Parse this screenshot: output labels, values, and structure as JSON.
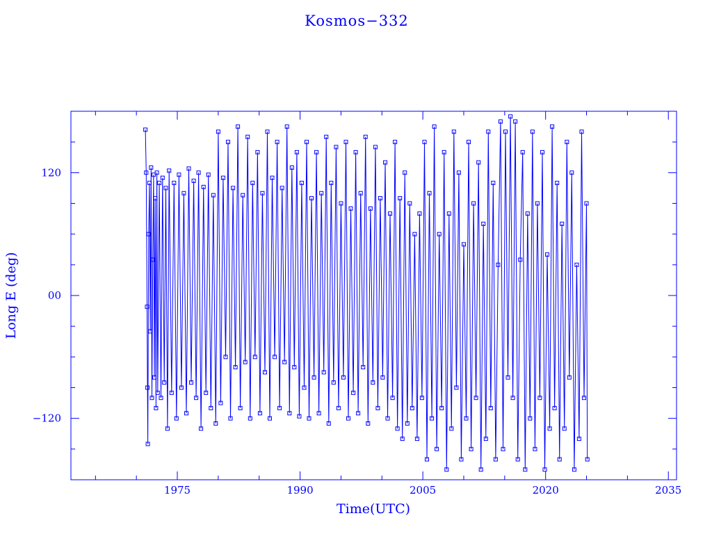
{
  "chart_data": {
    "type": "scatter",
    "title": "Kosmos−332",
    "xlabel": "Time(UTC)",
    "ylabel": "Long E (deg)",
    "xlim": [
      1962,
      2036
    ],
    "ylim": [
      -180,
      180
    ],
    "x_ticks": [
      1975,
      1990,
      2005,
      2020,
      2035
    ],
    "x_tick_labels": [
      "1975",
      "1990",
      "2005",
      "2020",
      "2035"
    ],
    "y_ticks": [
      120,
      0,
      -120
    ],
    "y_tick_labels": [
      "120",
      "00",
      "−120"
    ],
    "color": "#0000ff",
    "marker": "square",
    "connected": true,
    "grid": false,
    "x_range_of_data": [
      1971.0,
      2025.1
    ],
    "series": [
      {
        "name": "",
        "points": [
          [
            1971.1,
            162
          ],
          [
            1971.2,
            120
          ],
          [
            1971.3,
            -11
          ],
          [
            1971.35,
            -90
          ],
          [
            1971.4,
            -145
          ],
          [
            1971.5,
            60
          ],
          [
            1971.6,
            110
          ],
          [
            1971.7,
            -35
          ],
          [
            1971.8,
            125
          ],
          [
            1971.9,
            -100
          ],
          [
            1972.0,
            35
          ],
          [
            1972.1,
            118
          ],
          [
            1972.2,
            -80
          ],
          [
            1972.3,
            95
          ],
          [
            1972.4,
            -110
          ],
          [
            1972.5,
            120
          ],
          [
            1972.6,
            -95
          ],
          [
            1972.8,
            110
          ],
          [
            1973.0,
            -100
          ],
          [
            1973.2,
            115
          ],
          [
            1973.4,
            -85
          ],
          [
            1973.6,
            105
          ],
          [
            1973.8,
            -130
          ],
          [
            1974.0,
            122
          ],
          [
            1974.3,
            -95
          ],
          [
            1974.6,
            110
          ],
          [
            1974.9,
            -120
          ],
          [
            1975.2,
            118
          ],
          [
            1975.5,
            -90
          ],
          [
            1975.8,
            100
          ],
          [
            1976.1,
            -115
          ],
          [
            1976.4,
            124
          ],
          [
            1976.7,
            -85
          ],
          [
            1977.0,
            112
          ],
          [
            1977.3,
            -100
          ],
          [
            1977.6,
            120
          ],
          [
            1977.9,
            -130
          ],
          [
            1978.2,
            106
          ],
          [
            1978.5,
            -95
          ],
          [
            1978.8,
            118
          ],
          [
            1979.1,
            -110
          ],
          [
            1979.4,
            98
          ],
          [
            1979.7,
            -125
          ],
          [
            1980.0,
            160
          ],
          [
            1980.3,
            -105
          ],
          [
            1980.6,
            115
          ],
          [
            1980.9,
            -60
          ],
          [
            1981.2,
            150
          ],
          [
            1981.5,
            -120
          ],
          [
            1981.8,
            105
          ],
          [
            1982.1,
            -70
          ],
          [
            1982.4,
            165
          ],
          [
            1982.7,
            -110
          ],
          [
            1983.0,
            98
          ],
          [
            1983.3,
            -65
          ],
          [
            1983.6,
            155
          ],
          [
            1983.9,
            -120
          ],
          [
            1984.2,
            110
          ],
          [
            1984.5,
            -60
          ],
          [
            1984.8,
            140
          ],
          [
            1985.1,
            -115
          ],
          [
            1985.4,
            100
          ],
          [
            1985.7,
            -75
          ],
          [
            1986.0,
            160
          ],
          [
            1986.3,
            -120
          ],
          [
            1986.6,
            115
          ],
          [
            1986.9,
            -60
          ],
          [
            1987.2,
            150
          ],
          [
            1987.5,
            -110
          ],
          [
            1987.8,
            105
          ],
          [
            1988.1,
            -65
          ],
          [
            1988.4,
            165
          ],
          [
            1988.7,
            -115
          ],
          [
            1989.0,
            125
          ],
          [
            1989.3,
            -70
          ],
          [
            1989.6,
            140
          ],
          [
            1989.9,
            -118
          ],
          [
            1990.2,
            110
          ],
          [
            1990.5,
            -90
          ],
          [
            1990.8,
            150
          ],
          [
            1991.1,
            -120
          ],
          [
            1991.4,
            95
          ],
          [
            1991.7,
            -80
          ],
          [
            1992.0,
            140
          ],
          [
            1992.3,
            -115
          ],
          [
            1992.6,
            100
          ],
          [
            1992.9,
            -75
          ],
          [
            1993.2,
            155
          ],
          [
            1993.5,
            -125
          ],
          [
            1993.8,
            110
          ],
          [
            1994.1,
            -85
          ],
          [
            1994.4,
            145
          ],
          [
            1994.7,
            -110
          ],
          [
            1995.0,
            90
          ],
          [
            1995.3,
            -80
          ],
          [
            1995.6,
            150
          ],
          [
            1995.9,
            -120
          ],
          [
            1996.2,
            85
          ],
          [
            1996.5,
            -95
          ],
          [
            1996.8,
            140
          ],
          [
            1997.1,
            -115
          ],
          [
            1997.4,
            100
          ],
          [
            1997.7,
            -70
          ],
          [
            1998.0,
            155
          ],
          [
            1998.3,
            -125
          ],
          [
            1998.6,
            85
          ],
          [
            1998.9,
            -85
          ],
          [
            1999.2,
            145
          ],
          [
            1999.5,
            -110
          ],
          [
            1999.8,
            95
          ],
          [
            2000.1,
            -80
          ],
          [
            2000.4,
            130
          ],
          [
            2000.7,
            -120
          ],
          [
            2001.0,
            80
          ],
          [
            2001.3,
            -100
          ],
          [
            2001.6,
            150
          ],
          [
            2001.9,
            -130
          ],
          [
            2002.2,
            95
          ],
          [
            2002.5,
            -140
          ],
          [
            2002.8,
            120
          ],
          [
            2003.1,
            -125
          ],
          [
            2003.4,
            90
          ],
          [
            2003.7,
            -110
          ],
          [
            2004.0,
            60
          ],
          [
            2004.3,
            -140
          ],
          [
            2004.6,
            80
          ],
          [
            2004.9,
            -100
          ],
          [
            2005.2,
            150
          ],
          [
            2005.5,
            -160
          ],
          [
            2005.8,
            100
          ],
          [
            2006.1,
            -120
          ],
          [
            2006.4,
            165
          ],
          [
            2006.7,
            -150
          ],
          [
            2007.0,
            60
          ],
          [
            2007.3,
            -110
          ],
          [
            2007.6,
            140
          ],
          [
            2007.9,
            -170
          ],
          [
            2008.2,
            80
          ],
          [
            2008.5,
            -130
          ],
          [
            2008.8,
            160
          ],
          [
            2009.1,
            -90
          ],
          [
            2009.4,
            120
          ],
          [
            2009.7,
            -160
          ],
          [
            2010.0,
            50
          ],
          [
            2010.3,
            -120
          ],
          [
            2010.6,
            150
          ],
          [
            2010.9,
            -150
          ],
          [
            2011.2,
            90
          ],
          [
            2011.5,
            -100
          ],
          [
            2011.8,
            130
          ],
          [
            2012.1,
            -170
          ],
          [
            2012.4,
            70
          ],
          [
            2012.7,
            -140
          ],
          [
            2013.0,
            160
          ],
          [
            2013.3,
            -110
          ],
          [
            2013.6,
            110
          ],
          [
            2013.9,
            -160
          ],
          [
            2014.2,
            30
          ],
          [
            2014.5,
            170
          ],
          [
            2014.8,
            -150
          ],
          [
            2015.1,
            160
          ],
          [
            2015.4,
            -80
          ],
          [
            2015.7,
            175
          ],
          [
            2016.0,
            -100
          ],
          [
            2016.3,
            170
          ],
          [
            2016.6,
            -160
          ],
          [
            2016.9,
            35
          ],
          [
            2017.2,
            140
          ],
          [
            2017.5,
            -170
          ],
          [
            2017.8,
            80
          ],
          [
            2018.1,
            -120
          ],
          [
            2018.4,
            160
          ],
          [
            2018.7,
            -150
          ],
          [
            2019.0,
            90
          ],
          [
            2019.3,
            -100
          ],
          [
            2019.6,
            140
          ],
          [
            2019.9,
            -170
          ],
          [
            2020.2,
            40
          ],
          [
            2020.5,
            -130
          ],
          [
            2020.8,
            165
          ],
          [
            2021.1,
            -110
          ],
          [
            2021.4,
            110
          ],
          [
            2021.7,
            -160
          ],
          [
            2022.0,
            70
          ],
          [
            2022.3,
            -130
          ],
          [
            2022.6,
            150
          ],
          [
            2022.9,
            -80
          ],
          [
            2023.2,
            120
          ],
          [
            2023.5,
            -170
          ],
          [
            2023.8,
            30
          ],
          [
            2024.1,
            -140
          ],
          [
            2024.4,
            160
          ],
          [
            2024.7,
            -100
          ],
          [
            2025.0,
            90
          ],
          [
            2025.1,
            -160
          ]
        ]
      }
    ]
  }
}
